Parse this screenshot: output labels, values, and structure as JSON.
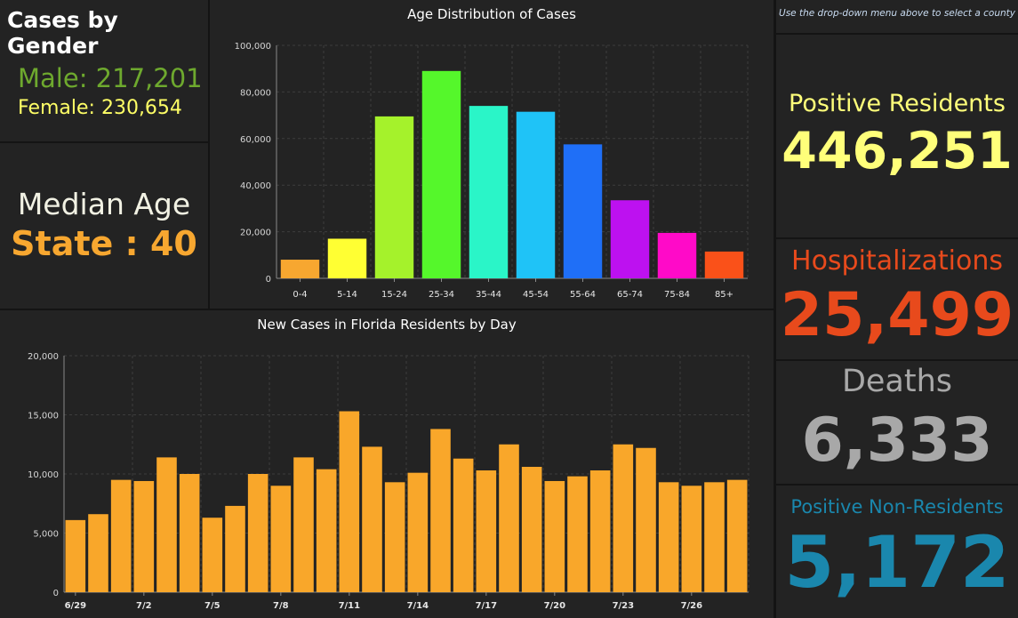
{
  "gender": {
    "title": "Cases by Gender",
    "male": "Male: 217,201",
    "female": "Female: 230,654",
    "male_color": "#6ea92e",
    "female_color": "#ffff66"
  },
  "median": {
    "title": "Median Age",
    "state": "State : 40"
  },
  "county_hint": "Use the drop-down menu above to select a county",
  "stats": {
    "positive_residents": {
      "label": "Positive Residents",
      "value": "446,251",
      "color": "#ffff7a"
    },
    "hospitalizations": {
      "label": "Hospitalizations",
      "value": "25,499",
      "color": "#e84a1c"
    },
    "deaths": {
      "label": "Deaths",
      "value": "6,333",
      "color": "#a8a8a8"
    },
    "non_residents": {
      "label": "Positive Non-Residents",
      "value": "5,172",
      "color": "#1a87ad"
    }
  },
  "chart_data": [
    {
      "type": "bar",
      "title": "Age Distribution of Cases",
      "categories": [
        "0-4",
        "5-14",
        "15-24",
        "25-34",
        "35-44",
        "45-54",
        "55-64",
        "65-74",
        "75-84",
        "85+"
      ],
      "values": [
        8000,
        17000,
        69500,
        89000,
        74000,
        71500,
        57500,
        33500,
        19500,
        11500
      ],
      "colors": [
        "#f7a730",
        "#ffff33",
        "#a5f22b",
        "#55f72b",
        "#2af5c8",
        "#1fc3f7",
        "#1f6ff7",
        "#bd11f0",
        "#ff0ac8",
        "#fa5119"
      ],
      "ylim": [
        0,
        100000
      ],
      "yticks": [
        0,
        20000,
        40000,
        60000,
        80000,
        100000
      ],
      "ytick_labels": [
        "0",
        "20,000",
        "40,000",
        "60,000",
        "80,000",
        "100,000"
      ],
      "grid": true
    },
    {
      "type": "bar",
      "title": "New Cases in Florida Residents by Day",
      "categories": [
        "6/29",
        "6/30",
        "7/1",
        "7/2",
        "7/3",
        "7/4",
        "7/5",
        "7/6",
        "7/7",
        "7/8",
        "7/9",
        "7/10",
        "7/11",
        "7/12",
        "7/13",
        "7/14",
        "7/15",
        "7/16",
        "7/17",
        "7/18",
        "7/19",
        "7/20",
        "7/21",
        "7/22",
        "7/23",
        "7/24",
        "7/25",
        "7/26",
        "7/27",
        "7/28"
      ],
      "values": [
        6100,
        6600,
        9500,
        9400,
        11400,
        10000,
        6300,
        7300,
        10000,
        9000,
        11400,
        10400,
        15300,
        12300,
        9300,
        10100,
        13800,
        11300,
        10300,
        12500,
        10600,
        9400,
        9800,
        10300,
        12500,
        12200,
        9300,
        9000,
        9300,
        9500
      ],
      "xtick_labels": [
        "6/29",
        "7/2",
        "7/5",
        "7/8",
        "7/11",
        "7/14",
        "7/17",
        "7/20",
        "7/23",
        "7/26"
      ],
      "xtick_indices": [
        0,
        3,
        6,
        9,
        12,
        15,
        18,
        21,
        24,
        27
      ],
      "ylim": [
        0,
        20000
      ],
      "yticks": [
        0,
        5000,
        10000,
        15000,
        20000
      ],
      "ytick_labels": [
        "0",
        "5,000",
        "10,000",
        "15,000",
        "20,000"
      ],
      "color": "#f9a72a",
      "grid": true
    }
  ]
}
